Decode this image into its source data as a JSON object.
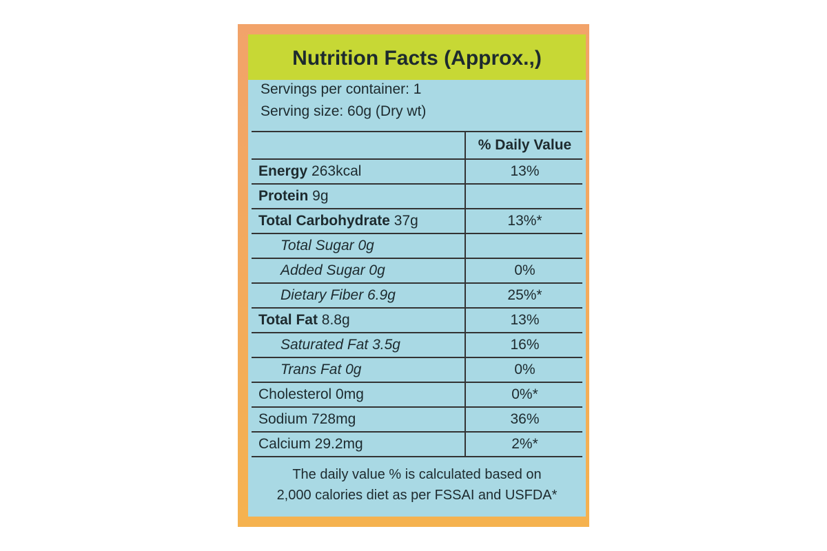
{
  "label": {
    "title": "Nutrition Facts (Approx.,)",
    "servings": [
      "Servings per container: 1",
      "Serving size: 60g (Dry wt)"
    ],
    "table": {
      "header": "% Daily Value",
      "rows": [
        {
          "bold": "Energy",
          "text": " 263kcal",
          "dv": "13%"
        },
        {
          "bold": "Protein",
          "text": " 9g"
        },
        {
          "bold": "Total Carbohydrate",
          "text": " 37g",
          "dv": "13%*"
        },
        {
          "text": "Total Sugar 0g",
          "sub": true
        },
        {
          "text": "Added Sugar 0g",
          "sub": true,
          "dv": "0%"
        },
        {
          "text": "Dietary Fiber 6.9g",
          "sub": true,
          "dv": "25%*"
        },
        {
          "bold": "Total Fat",
          "text": " 8.8g",
          "dv": "13%"
        },
        {
          "text": "Saturated Fat 3.5g",
          "sub": true,
          "dv": "16%"
        },
        {
          "text": "Trans Fat 0g",
          "sub": true,
          "dv": "0%"
        },
        {
          "text": "Cholesterol 0mg",
          "dv": "0%*"
        },
        {
          "text": "Sodium 728mg",
          "dv": "36%"
        },
        {
          "text": "Calcium 29.2mg",
          "dv": "2%*"
        }
      ]
    },
    "footnote": [
      "The daily value % is calculated based on",
      "2,000 calories diet as per FSSAI and USFDA*"
    ]
  }
}
